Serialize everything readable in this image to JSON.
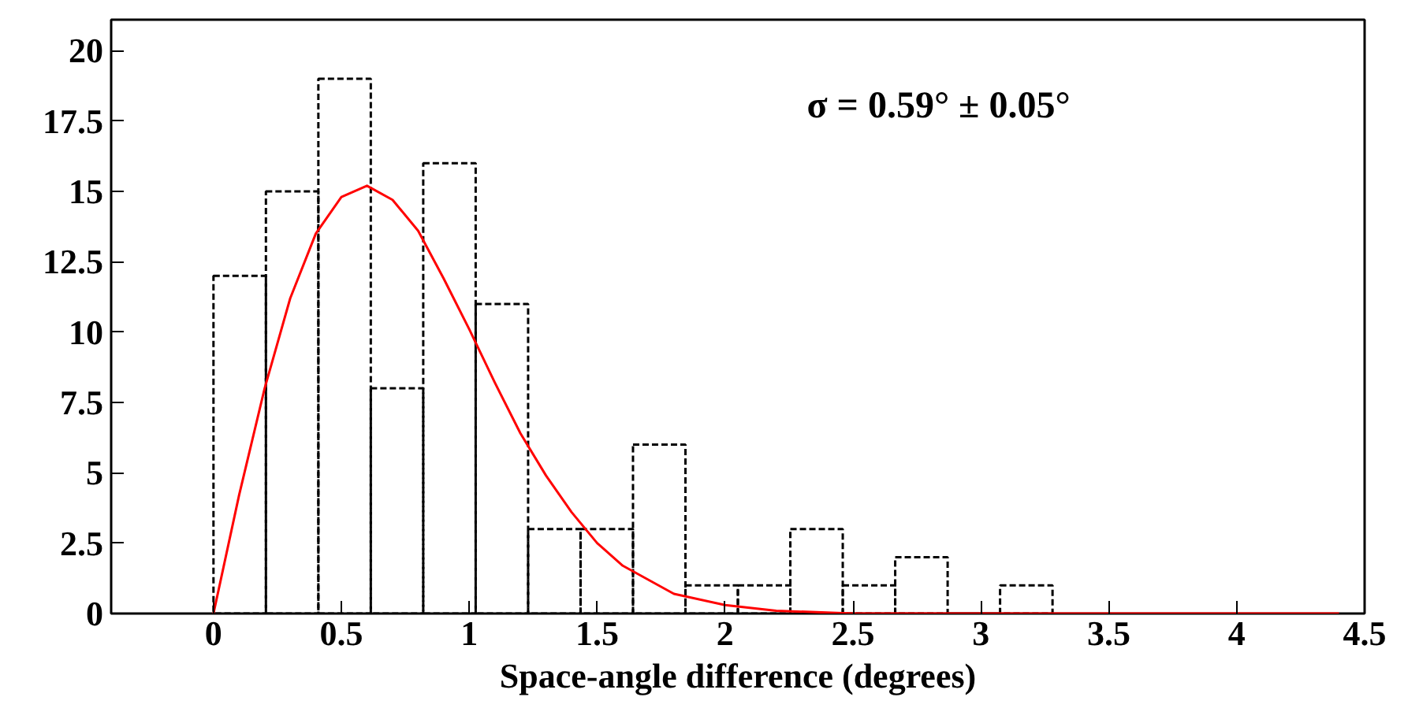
{
  "chart_data": {
    "type": "histogram",
    "bins": [
      0,
      0.205,
      0.41,
      0.615,
      0.82,
      1.025,
      1.23,
      1.435,
      1.64,
      1.845,
      2.05,
      2.255,
      2.46,
      2.665,
      2.87,
      3.075,
      3.28
    ],
    "values": [
      12,
      15,
      19,
      8,
      16,
      11,
      3,
      3,
      6,
      1,
      1,
      3,
      1,
      2,
      0,
      1
    ],
    "color": "#000000",
    "line_style": "dashed",
    "series": [
      {
        "type": "line",
        "color": "#ff0000",
        "line_style": "solid",
        "x": [
          0,
          0.1,
          0.2,
          0.3,
          0.4,
          0.5,
          0.6,
          0.7,
          0.8,
          0.9,
          1.0,
          1.1,
          1.2,
          1.3,
          1.4,
          1.5,
          1.6,
          1.8,
          2.0,
          2.2,
          2.5,
          3.0,
          3.5,
          4.0,
          4.4
        ],
        "values": [
          0,
          4.2,
          8.0,
          11.2,
          13.5,
          14.8,
          15.2,
          14.7,
          13.6,
          11.9,
          10.1,
          8.2,
          6.4,
          4.9,
          3.6,
          2.5,
          1.7,
          0.7,
          0.3,
          0.1,
          0,
          0,
          0,
          0,
          0
        ]
      }
    ],
    "xlabel": "Space-angle difference (degrees)",
    "annotations": [
      "σ = 0.59° ± 0.05°"
    ],
    "xlim": [
      -0.4,
      4.5
    ],
    "xticks": [
      0,
      0.5,
      1,
      1.5,
      2,
      2.5,
      3,
      3.5,
      4,
      4.5
    ],
    "ylim": [
      0,
      21.1
    ],
    "yticks": [
      0,
      2.5,
      5,
      7.5,
      10,
      12.5,
      15,
      17.5,
      20
    ],
    "grid": false
  }
}
